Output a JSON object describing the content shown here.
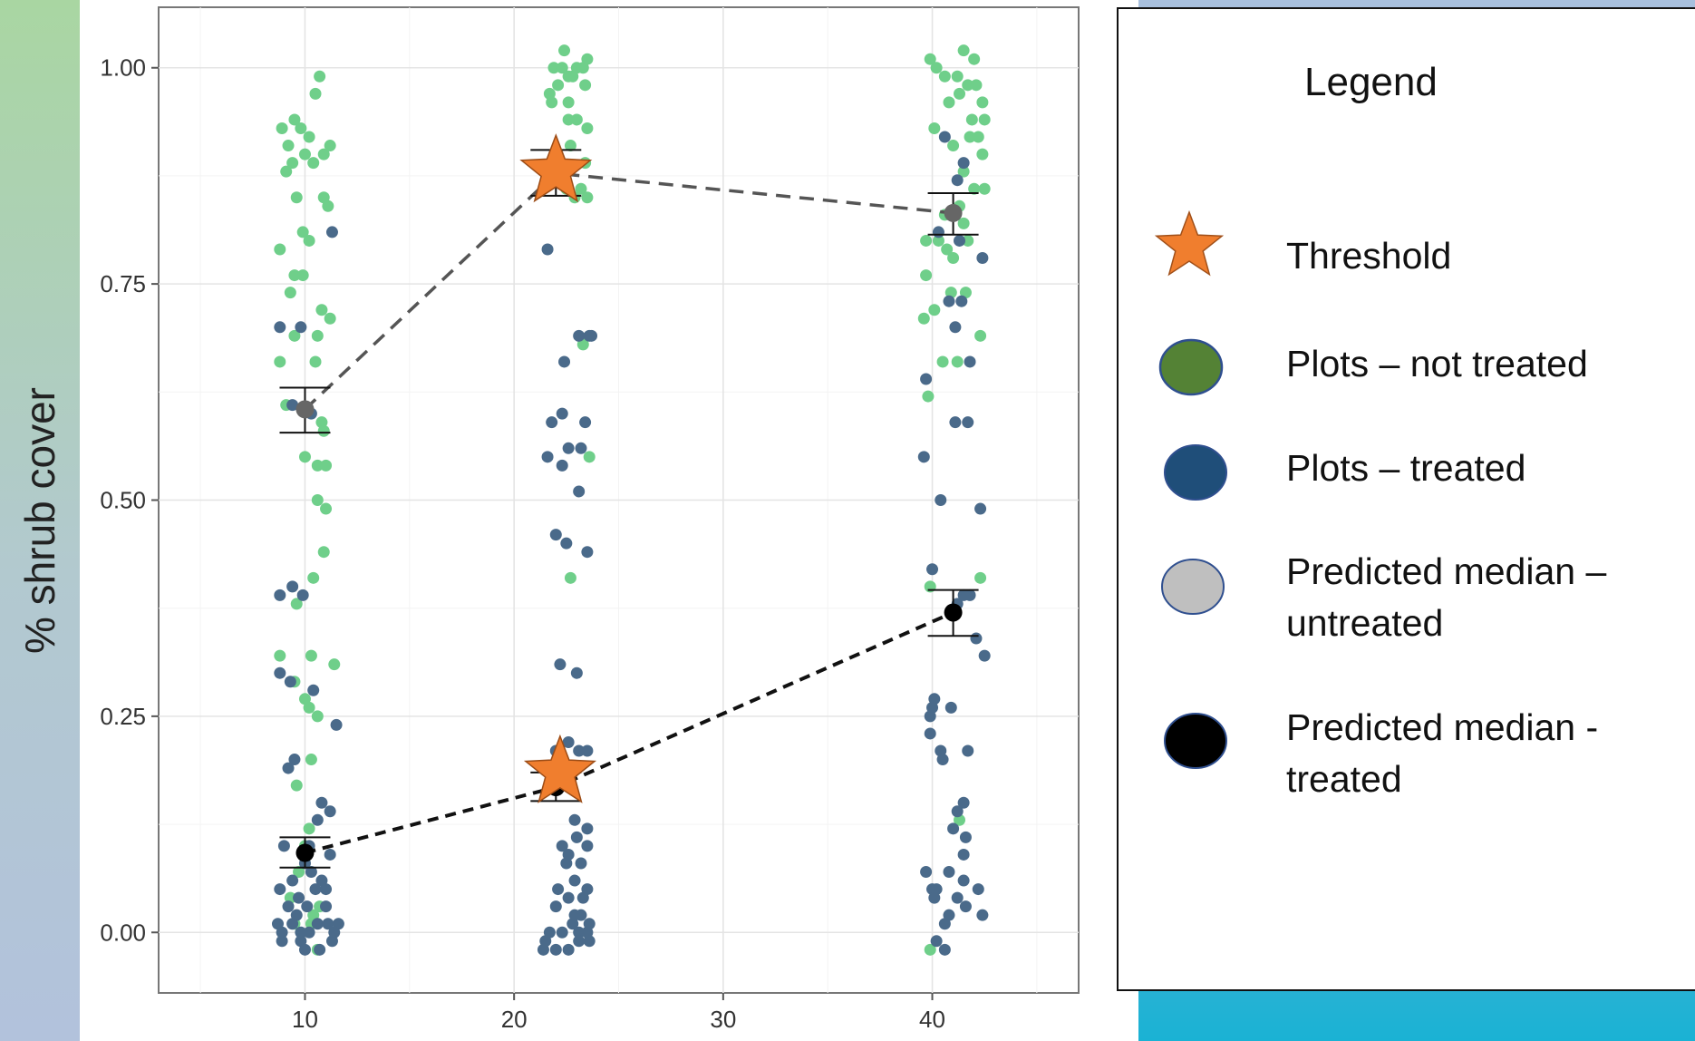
{
  "chart_data": {
    "type": "scatter",
    "ylabel": "% shrub cover",
    "xlabel": "",
    "x_ticks": [
      10,
      20,
      30,
      40
    ],
    "y_ticks": [
      "0.00",
      "0.25",
      "0.50",
      "0.75",
      "1.00"
    ],
    "xlim": [
      3,
      47
    ],
    "ylim": [
      -0.07,
      1.07
    ],
    "grid": true,
    "colors": {
      "not_treated": "#6fcf8a",
      "treated": "#4a6a8a",
      "threshold": "#f07e2e",
      "median_untreated": "#555555",
      "median_treated": "#000000"
    },
    "series": [
      {
        "key": "not_treated",
        "points": [
          [
            8.9,
            0.93
          ],
          [
            9.2,
            0.91
          ],
          [
            9.5,
            0.94
          ],
          [
            9.8,
            0.93
          ],
          [
            10.2,
            0.92
          ],
          [
            10.5,
            0.97
          ],
          [
            10.7,
            0.99
          ],
          [
            9.1,
            0.88
          ],
          [
            9.4,
            0.89
          ],
          [
            10.0,
            0.9
          ],
          [
            10.4,
            0.89
          ],
          [
            10.9,
            0.9
          ],
          [
            11.2,
            0.91
          ],
          [
            9.6,
            0.85
          ],
          [
            10.9,
            0.85
          ],
          [
            11.1,
            0.84
          ],
          [
            9.9,
            0.81
          ],
          [
            10.2,
            0.8
          ],
          [
            8.8,
            0.79
          ],
          [
            9.5,
            0.76
          ],
          [
            9.9,
            0.76
          ],
          [
            9.3,
            0.74
          ],
          [
            10.8,
            0.72
          ],
          [
            11.2,
            0.71
          ],
          [
            9.5,
            0.69
          ],
          [
            10.6,
            0.69
          ],
          [
            8.8,
            0.66
          ],
          [
            10.5,
            0.66
          ],
          [
            9.1,
            0.61
          ],
          [
            10.8,
            0.59
          ],
          [
            10.9,
            0.58
          ],
          [
            10.0,
            0.55
          ],
          [
            10.6,
            0.54
          ],
          [
            11.0,
            0.54
          ],
          [
            10.6,
            0.5
          ],
          [
            11.0,
            0.49
          ],
          [
            10.9,
            0.44
          ],
          [
            10.4,
            0.41
          ],
          [
            9.6,
            0.38
          ],
          [
            8.8,
            0.32
          ],
          [
            10.3,
            0.32
          ],
          [
            11.4,
            0.31
          ],
          [
            9.5,
            0.29
          ],
          [
            10.0,
            0.27
          ],
          [
            10.2,
            0.26
          ],
          [
            10.6,
            0.25
          ],
          [
            10.3,
            0.2
          ],
          [
            9.6,
            0.17
          ],
          [
            10.0,
            0.1
          ],
          [
            10.2,
            0.12
          ],
          [
            9.7,
            0.07
          ],
          [
            9.3,
            0.04
          ],
          [
            10.7,
            0.03
          ],
          [
            10.4,
            0.02
          ],
          [
            9.5,
            0.01
          ],
          [
            10.3,
            0.01
          ],
          [
            10.6,
            -0.02
          ],
          [
            22.4,
            1.02
          ],
          [
            21.9,
            1.0
          ],
          [
            22.3,
            1.0
          ],
          [
            22.6,
            0.99
          ],
          [
            23.0,
            1.0
          ],
          [
            23.3,
            1.0
          ],
          [
            23.5,
            1.01
          ],
          [
            22.8,
            0.99
          ],
          [
            23.4,
            0.98
          ],
          [
            21.7,
            0.97
          ],
          [
            22.1,
            0.98
          ],
          [
            22.6,
            0.96
          ],
          [
            21.8,
            0.96
          ],
          [
            22.6,
            0.94
          ],
          [
            23.0,
            0.94
          ],
          [
            23.5,
            0.93
          ],
          [
            22.7,
            0.91
          ],
          [
            23.4,
            0.89
          ],
          [
            22.0,
            0.87
          ],
          [
            22.5,
            0.86
          ],
          [
            23.2,
            0.86
          ],
          [
            22.9,
            0.85
          ],
          [
            23.5,
            0.85
          ],
          [
            23.3,
            0.68
          ],
          [
            23.6,
            0.55
          ],
          [
            22.7,
            0.41
          ],
          [
            39.9,
            1.01
          ],
          [
            40.2,
            1.0
          ],
          [
            41.5,
            1.02
          ],
          [
            42.0,
            1.01
          ],
          [
            40.6,
            0.99
          ],
          [
            41.2,
            0.99
          ],
          [
            42.1,
            0.98
          ],
          [
            41.7,
            0.98
          ],
          [
            40.8,
            0.96
          ],
          [
            41.3,
            0.97
          ],
          [
            42.4,
            0.96
          ],
          [
            41.9,
            0.94
          ],
          [
            42.5,
            0.94
          ],
          [
            40.1,
            0.93
          ],
          [
            41.8,
            0.92
          ],
          [
            42.2,
            0.92
          ],
          [
            41.0,
            0.91
          ],
          [
            42.4,
            0.9
          ],
          [
            41.5,
            0.88
          ],
          [
            42.0,
            0.86
          ],
          [
            42.5,
            0.86
          ],
          [
            41.3,
            0.84
          ],
          [
            40.6,
            0.83
          ],
          [
            41.5,
            0.82
          ],
          [
            39.7,
            0.8
          ],
          [
            40.3,
            0.8
          ],
          [
            41.7,
            0.8
          ],
          [
            40.7,
            0.79
          ],
          [
            41.0,
            0.78
          ],
          [
            39.7,
            0.76
          ],
          [
            40.9,
            0.74
          ],
          [
            41.6,
            0.74
          ],
          [
            40.1,
            0.72
          ],
          [
            39.6,
            0.71
          ],
          [
            42.3,
            0.69
          ],
          [
            40.5,
            0.66
          ],
          [
            41.2,
            0.66
          ],
          [
            39.8,
            0.62
          ],
          [
            39.9,
            0.4
          ],
          [
            42.3,
            0.41
          ],
          [
            41.3,
            0.13
          ],
          [
            39.9,
            -0.02
          ]
        ]
      },
      {
        "key": "treated",
        "points": [
          [
            11.3,
            0.81
          ],
          [
            8.8,
            0.7
          ],
          [
            9.8,
            0.7
          ],
          [
            9.4,
            0.61
          ],
          [
            10.3,
            0.6
          ],
          [
            9.4,
            0.4
          ],
          [
            9.9,
            0.39
          ],
          [
            8.8,
            0.39
          ],
          [
            8.8,
            0.3
          ],
          [
            9.3,
            0.29
          ],
          [
            10.4,
            0.28
          ],
          [
            11.5,
            0.24
          ],
          [
            9.2,
            0.19
          ],
          [
            9.5,
            0.2
          ],
          [
            10.8,
            0.15
          ],
          [
            11.2,
            0.14
          ],
          [
            10.6,
            0.13
          ],
          [
            10.2,
            0.1
          ],
          [
            9.0,
            0.1
          ],
          [
            11.2,
            0.09
          ],
          [
            10.0,
            0.08
          ],
          [
            9.4,
            0.06
          ],
          [
            10.3,
            0.07
          ],
          [
            8.8,
            0.05
          ],
          [
            10.8,
            0.06
          ],
          [
            11.0,
            0.05
          ],
          [
            9.7,
            0.04
          ],
          [
            10.5,
            0.05
          ],
          [
            9.2,
            0.03
          ],
          [
            9.6,
            0.02
          ],
          [
            10.1,
            0.03
          ],
          [
            11.0,
            0.03
          ],
          [
            8.7,
            0.01
          ],
          [
            9.4,
            0.01
          ],
          [
            10.2,
            0.0
          ],
          [
            11.1,
            0.01
          ],
          [
            11.6,
            0.01
          ],
          [
            8.9,
            -0.01
          ],
          [
            9.8,
            -0.01
          ],
          [
            10.7,
            -0.02
          ],
          [
            11.3,
            -0.01
          ],
          [
            8.9,
            0.0
          ],
          [
            10.0,
            -0.02
          ],
          [
            11.4,
            0.0
          ],
          [
            10.6,
            0.01
          ],
          [
            9.8,
            0.0
          ],
          [
            21.6,
            0.79
          ],
          [
            23.1,
            0.69
          ],
          [
            23.6,
            0.69
          ],
          [
            23.7,
            0.69
          ],
          [
            22.4,
            0.66
          ],
          [
            21.8,
            0.59
          ],
          [
            22.3,
            0.6
          ],
          [
            23.4,
            0.59
          ],
          [
            21.6,
            0.55
          ],
          [
            22.6,
            0.56
          ],
          [
            23.2,
            0.56
          ],
          [
            22.3,
            0.54
          ],
          [
            23.1,
            0.51
          ],
          [
            22.0,
            0.46
          ],
          [
            22.5,
            0.45
          ],
          [
            23.5,
            0.44
          ],
          [
            22.2,
            0.31
          ],
          [
            23.0,
            0.3
          ],
          [
            22.6,
            0.22
          ],
          [
            22.0,
            0.21
          ],
          [
            23.1,
            0.21
          ],
          [
            23.5,
            0.21
          ],
          [
            22.9,
            0.13
          ],
          [
            23.5,
            0.12
          ],
          [
            23.0,
            0.11
          ],
          [
            23.5,
            0.1
          ],
          [
            22.3,
            0.1
          ],
          [
            22.6,
            0.09
          ],
          [
            23.2,
            0.08
          ],
          [
            22.5,
            0.08
          ],
          [
            22.9,
            0.06
          ],
          [
            23.5,
            0.05
          ],
          [
            22.1,
            0.05
          ],
          [
            22.6,
            0.04
          ],
          [
            23.3,
            0.04
          ],
          [
            22.0,
            0.03
          ],
          [
            22.9,
            0.02
          ],
          [
            23.6,
            0.01
          ],
          [
            21.7,
            0.0
          ],
          [
            22.3,
            0.0
          ],
          [
            23.1,
            0.0
          ],
          [
            23.5,
            0.0
          ],
          [
            21.5,
            -0.01
          ],
          [
            22.0,
            -0.02
          ],
          [
            22.6,
            -0.02
          ],
          [
            23.1,
            -0.01
          ],
          [
            23.6,
            -0.01
          ],
          [
            21.4,
            -0.02
          ],
          [
            22.8,
            0.01
          ],
          [
            23.2,
            0.02
          ],
          [
            40.6,
            0.92
          ],
          [
            41.5,
            0.89
          ],
          [
            41.2,
            0.87
          ],
          [
            40.9,
            0.83
          ],
          [
            40.3,
            0.81
          ],
          [
            41.3,
            0.8
          ],
          [
            42.4,
            0.78
          ],
          [
            41.4,
            0.73
          ],
          [
            40.8,
            0.73
          ],
          [
            41.1,
            0.7
          ],
          [
            41.8,
            0.66
          ],
          [
            39.7,
            0.64
          ],
          [
            41.7,
            0.59
          ],
          [
            41.1,
            0.59
          ],
          [
            39.6,
            0.55
          ],
          [
            40.4,
            0.5
          ],
          [
            42.3,
            0.49
          ],
          [
            40.0,
            0.42
          ],
          [
            41.2,
            0.38
          ],
          [
            41.5,
            0.39
          ],
          [
            41.8,
            0.39
          ],
          [
            42.1,
            0.34
          ],
          [
            42.5,
            0.32
          ],
          [
            40.1,
            0.27
          ],
          [
            40.0,
            0.26
          ],
          [
            39.9,
            0.25
          ],
          [
            40.9,
            0.26
          ],
          [
            39.9,
            0.23
          ],
          [
            40.4,
            0.21
          ],
          [
            40.5,
            0.2
          ],
          [
            41.7,
            0.21
          ],
          [
            41.5,
            0.15
          ],
          [
            41.2,
            0.14
          ],
          [
            41.0,
            0.12
          ],
          [
            41.6,
            0.11
          ],
          [
            41.5,
            0.09
          ],
          [
            39.7,
            0.07
          ],
          [
            40.8,
            0.07
          ],
          [
            41.5,
            0.06
          ],
          [
            40.0,
            0.05
          ],
          [
            40.2,
            0.05
          ],
          [
            42.2,
            0.05
          ],
          [
            40.1,
            0.04
          ],
          [
            41.2,
            0.04
          ],
          [
            41.6,
            0.03
          ],
          [
            40.8,
            0.02
          ],
          [
            42.4,
            0.02
          ],
          [
            40.6,
            0.01
          ],
          [
            40.2,
            -0.01
          ],
          [
            40.6,
            -0.02
          ]
        ]
      }
    ],
    "medians": {
      "untreated": [
        {
          "x": 10,
          "y": 0.605,
          "lo": 0.578,
          "hi": 0.63
        },
        {
          "x": 22,
          "y": 0.878,
          "lo": 0.852,
          "hi": 0.905
        },
        {
          "x": 41,
          "y": 0.832,
          "lo": 0.807,
          "hi": 0.855
        }
      ],
      "treated": [
        {
          "x": 10,
          "y": 0.092,
          "lo": 0.075,
          "hi": 0.11
        },
        {
          "x": 22,
          "y": 0.168,
          "lo": 0.152,
          "hi": 0.185
        },
        {
          "x": 41,
          "y": 0.37,
          "lo": 0.343,
          "hi": 0.396
        }
      ]
    },
    "thresholds": [
      {
        "x": 22,
        "y": 0.88
      },
      {
        "x": 22.2,
        "y": 0.185
      }
    ]
  },
  "legend": {
    "title": "Legend",
    "items": [
      {
        "symbol": "star",
        "color": "#f07e2e",
        "line1": "Threshold",
        "line2": ""
      },
      {
        "symbol": "circle",
        "color": "#548235",
        "line1": "Plots – not treated",
        "line2": ""
      },
      {
        "symbol": "circle",
        "color": "#1f4e79",
        "line1": "Plots – treated",
        "line2": ""
      },
      {
        "symbol": "circle",
        "color": "#bfbfbf",
        "line1": "Predicted median –",
        "line2": "untreated"
      },
      {
        "symbol": "circle",
        "color": "#000000",
        "line1": "Predicted median -",
        "line2": "treated"
      }
    ]
  }
}
